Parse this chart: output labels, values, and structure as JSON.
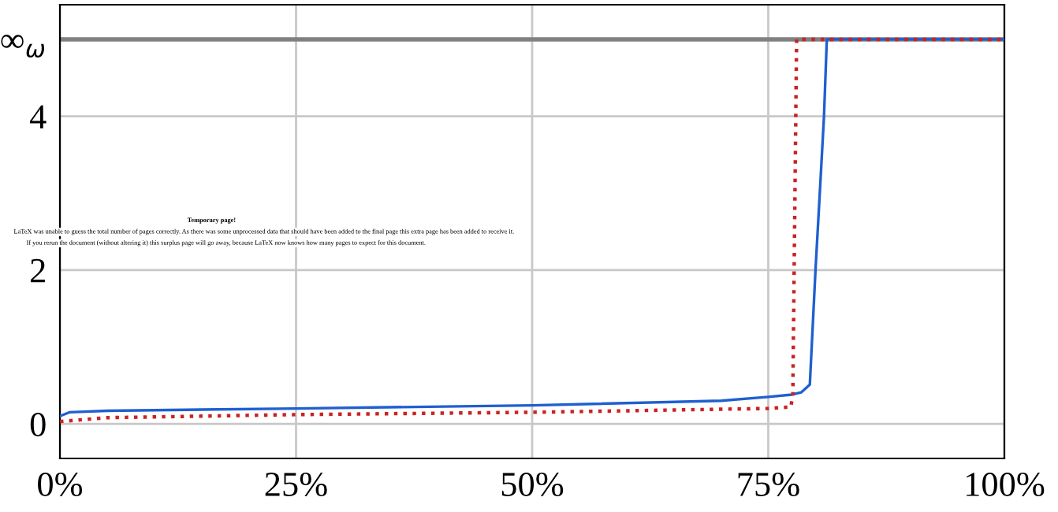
{
  "chart_data": {
    "type": "line",
    "x": [
      0,
      1,
      5,
      25,
      50,
      70,
      75,
      77.5,
      78.5,
      79.4,
      80.0,
      80.5,
      80.9,
      81.2,
      100
    ],
    "series": [
      {
        "color": "#1f5fd0",
        "line_style": "solid",
        "values": [
          0.1,
          0.15,
          0.17,
          0.2,
          0.24,
          0.3,
          0.35,
          0.38,
          0.41,
          0.51,
          2.0,
          3.1,
          4.0,
          5,
          5
        ]
      },
      {
        "color": "#cc2222",
        "line_style": "dotted",
        "x": [
          0,
          5,
          25,
          50,
          75,
          77.4,
          77.6,
          78.0,
          100
        ],
        "values": [
          0.03,
          0.08,
          0.12,
          0.15,
          0.2,
          0.22,
          0.39,
          5,
          5
        ]
      }
    ],
    "xlim": [
      0,
      100
    ],
    "xticks": [
      {
        "value": 0,
        "label": "0%"
      },
      {
        "value": 25,
        "label": "25%"
      },
      {
        "value": 50,
        "label": "50%"
      },
      {
        "value": 75,
        "label": "75%"
      },
      {
        "value": 100,
        "label": "100%"
      }
    ],
    "ylim": [
      -0.45,
      5.45
    ],
    "yticks": [
      0,
      2,
      4,
      {
        "value": 5,
        "label": "∞$_{ω}$"
      }
    ],
    "grid": true,
    "marker": "none",
    "ref_lines": [
      {
        "axis": "y",
        "value": 5,
        "label": null,
        "color": "#808080"
      }
    ],
    "annotations": [
      "Temporary page!",
      "LaTeX was unable to guess the total number of pages correctly. As there was some unprocessed data that should have been added to the final page this extra page has been added to receive it.",
      "If you rerun the document (without altering it) this surplus page will go away, because LaTeX now knows how many pages to expect for this document."
    ]
  }
}
